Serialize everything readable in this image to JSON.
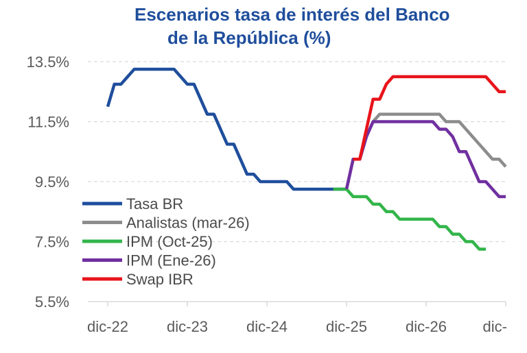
{
  "title_line1": "Escenarios tasa de interés del Banco",
  "title_line2": "de la República (%)",
  "chart_data": {
    "type": "line",
    "title": "Escenarios tasa de interés del Banco de la República (%)",
    "xlabel": "",
    "ylabel": "",
    "ylim": [
      5.5,
      13.5
    ],
    "yticks": [
      13.5,
      11.5,
      9.5,
      7.5,
      5.5
    ],
    "ytick_labels": [
      "13.5%",
      "11.5%",
      "9.5%",
      "7.5%",
      "5.5%"
    ],
    "xticks": [
      0,
      12,
      24,
      36,
      48,
      60
    ],
    "xtick_labels": [
      "dic-22",
      "dic-23",
      "dic-24",
      "dic-25",
      "dic-26",
      "dic-"
    ],
    "x_unit": "months since dic-22",
    "xlim": [
      -3,
      60
    ],
    "grid": "horizontal dashed",
    "legend_position": "bottom-left",
    "series": [
      {
        "name": "Tasa BR",
        "color": "#1f4e9c",
        "x": [
          0,
          1,
          2,
          3,
          4,
          5,
          6,
          7,
          8,
          9,
          10,
          11,
          12,
          13,
          14,
          15,
          16,
          17,
          18,
          19,
          20,
          21,
          22,
          23,
          24,
          25,
          26,
          27,
          28,
          29,
          30,
          31,
          32,
          33,
          34,
          35,
          36
        ],
        "y": [
          12.0,
          12.75,
          12.75,
          13.0,
          13.25,
          13.25,
          13.25,
          13.25,
          13.25,
          13.25,
          13.25,
          13.0,
          12.75,
          12.75,
          12.25,
          11.75,
          11.75,
          11.25,
          10.75,
          10.75,
          10.25,
          9.75,
          9.75,
          9.5,
          9.5,
          9.5,
          9.5,
          9.5,
          9.25,
          9.25,
          9.25,
          9.25,
          9.25,
          9.25,
          9.25,
          9.25,
          9.25
        ]
      },
      {
        "name": "Analistas (mar-26)",
        "color": "#8c8c8c",
        "x": [
          36,
          37,
          38,
          39,
          40,
          41,
          42,
          43,
          44,
          45,
          46,
          47,
          48,
          49,
          50,
          51,
          52,
          53,
          54,
          55,
          56,
          57,
          58,
          59,
          60
        ],
        "y": [
          9.25,
          10.25,
          10.25,
          11.0,
          11.5,
          11.75,
          11.75,
          11.75,
          11.75,
          11.75,
          11.75,
          11.75,
          11.75,
          11.75,
          11.75,
          11.5,
          11.5,
          11.5,
          11.25,
          11.0,
          10.75,
          10.5,
          10.25,
          10.25,
          10.0
        ]
      },
      {
        "name": "IPM (Oct-25)",
        "color": "#33b54a",
        "x": [
          34,
          35,
          36,
          37,
          38,
          39,
          40,
          41,
          42,
          43,
          44,
          45,
          46,
          47,
          48,
          49,
          50,
          51,
          52,
          53,
          54,
          55,
          56,
          57
        ],
        "y": [
          9.25,
          9.25,
          9.25,
          9.0,
          9.0,
          9.0,
          8.75,
          8.75,
          8.5,
          8.5,
          8.25,
          8.25,
          8.25,
          8.25,
          8.25,
          8.25,
          8.0,
          8.0,
          7.75,
          7.75,
          7.5,
          7.5,
          7.25,
          7.25
        ]
      },
      {
        "name": "IPM (Ene-26)",
        "color": "#7030a0",
        "x": [
          36,
          37,
          38,
          39,
          40,
          41,
          42,
          43,
          44,
          45,
          46,
          47,
          48,
          49,
          50,
          51,
          52,
          53,
          54,
          55,
          56,
          57,
          58,
          59,
          60
        ],
        "y": [
          9.25,
          10.25,
          10.25,
          11.0,
          11.5,
          11.5,
          11.5,
          11.5,
          11.5,
          11.5,
          11.5,
          11.5,
          11.5,
          11.5,
          11.25,
          11.25,
          11.0,
          10.5,
          10.5,
          10.0,
          9.5,
          9.5,
          9.25,
          9.0,
          9.0
        ]
      },
      {
        "name": "Swap IBR",
        "color": "#e8141b",
        "x": [
          37,
          38,
          39,
          40,
          41,
          42,
          43,
          44,
          45,
          46,
          47,
          48,
          49,
          50,
          51,
          52,
          53,
          54,
          55,
          56,
          57,
          58,
          59,
          60
        ],
        "y": [
          10.25,
          10.25,
          11.25,
          12.25,
          12.25,
          12.75,
          13.0,
          13.0,
          13.0,
          13.0,
          13.0,
          13.0,
          13.0,
          13.0,
          13.0,
          13.0,
          13.0,
          13.0,
          13.0,
          13.0,
          13.0,
          12.75,
          12.5,
          12.5
        ]
      }
    ]
  }
}
